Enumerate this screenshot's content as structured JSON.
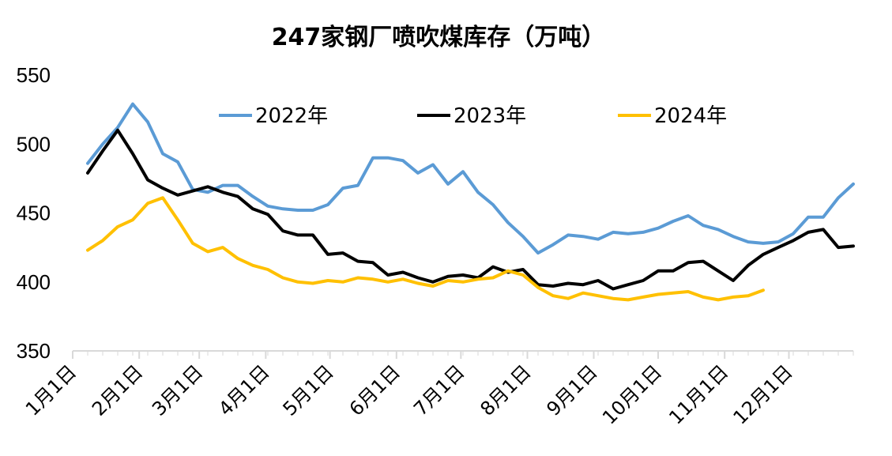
{
  "chart_data": {
    "type": "line",
    "title": "247家钢厂喷吹煤库存（万吨）",
    "ylim": [
      350,
      550
    ],
    "yticks": [
      350,
      400,
      450,
      500,
      550
    ],
    "xlim": [
      0,
      52
    ],
    "categories": [
      "1月1日",
      "2月1日",
      "3月1日",
      "4月1日",
      "5月1日",
      "6月1日",
      "7月1日",
      "8月1日",
      "9月1日",
      "10月1日",
      "11月1日",
      "12月1日"
    ],
    "category_x": [
      0,
      4.43,
      8.43,
      12.86,
      17.14,
      21.57,
      25.86,
      30.29,
      34.71,
      39,
      43.43,
      47.71
    ],
    "legend_position": "top",
    "grid": false,
    "series": [
      {
        "name": "2022年",
        "color": "#5b9bd5",
        "x": [
          1,
          2,
          3,
          4,
          5,
          6,
          7,
          8,
          9,
          10,
          11,
          12,
          13,
          14,
          15,
          16,
          17,
          18,
          19,
          20,
          21,
          22,
          23,
          24,
          25,
          26,
          27,
          28,
          29,
          30,
          31,
          32,
          33,
          34,
          35,
          36,
          37,
          38,
          39,
          40,
          41,
          42,
          43,
          44,
          45,
          46,
          47,
          48,
          49,
          50,
          51,
          52
        ],
        "values": [
          486,
          500,
          512,
          529,
          516,
          493,
          487,
          467,
          465,
          470,
          470,
          462,
          455,
          453,
          452,
          452,
          456,
          468,
          470,
          490,
          490,
          488,
          479,
          485,
          471,
          480,
          465,
          456,
          443,
          433,
          421,
          427,
          434,
          433,
          431,
          436,
          435,
          436,
          439,
          444,
          448,
          441,
          438,
          433,
          429,
          428,
          429,
          435,
          447,
          447,
          461,
          471
        ]
      },
      {
        "name": "2023年",
        "color": "#000000",
        "x": [
          1,
          2,
          3,
          4,
          5,
          6,
          7,
          8,
          9,
          10,
          11,
          12,
          13,
          14,
          15,
          16,
          17,
          18,
          19,
          20,
          21,
          22,
          23,
          24,
          25,
          26,
          27,
          28,
          29,
          30,
          31,
          32,
          33,
          34,
          35,
          36,
          37,
          38,
          39,
          40,
          41,
          42,
          43,
          44,
          45,
          46,
          47,
          48,
          49,
          50,
          51,
          52
        ],
        "values": [
          479,
          495,
          510,
          493,
          474,
          468,
          463,
          466,
          469,
          465,
          462,
          453,
          449,
          437,
          434,
          434,
          420,
          421,
          415,
          414,
          405,
          407,
          403,
          400,
          404,
          405,
          403,
          411,
          407,
          409,
          398,
          397,
          399,
          398,
          401,
          395,
          398,
          401,
          408,
          408,
          414,
          415,
          408,
          401,
          412,
          420,
          425,
          430,
          436,
          438,
          425,
          426
        ]
      },
      {
        "name": "2024年",
        "color": "#ffc000",
        "x": [
          1,
          2,
          3,
          4,
          5,
          6,
          7,
          8,
          9,
          10,
          11,
          12,
          13,
          14,
          15,
          16,
          17,
          18,
          19,
          20,
          21,
          22,
          23,
          24,
          25,
          26,
          27,
          28,
          29,
          30,
          31,
          32,
          33,
          34,
          35,
          36,
          37,
          38,
          39,
          40,
          41,
          42,
          43,
          44,
          45,
          46
        ],
        "values": [
          423,
          430,
          440,
          445,
          457,
          461,
          445,
          428,
          422,
          425,
          417,
          412,
          409,
          403,
          400,
          399,
          401,
          400,
          403,
          402,
          400,
          402,
          399,
          397,
          401,
          400,
          402,
          403,
          408,
          405,
          396,
          390,
          388,
          392,
          390,
          388,
          387,
          389,
          391,
          392,
          393,
          389,
          387,
          389,
          390,
          394
        ]
      }
    ]
  }
}
